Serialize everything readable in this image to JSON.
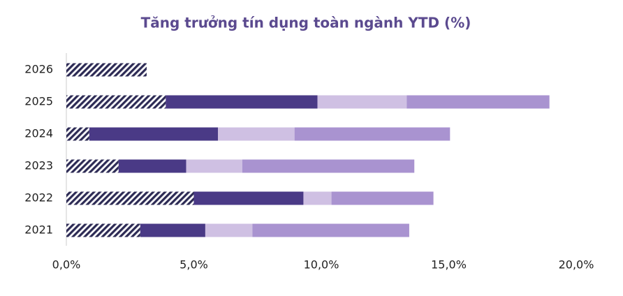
{
  "chart_data": {
    "type": "stacked-bar-horizontal",
    "title": "Tăng trưởng tín dụng toàn ngành YTD (%)",
    "categories": [
      "2026",
      "2025",
      "2024",
      "2023",
      "2022",
      "2021"
    ],
    "series": [
      {
        "color": "#2d2b55",
        "hatch": true,
        "values": [
          3.15,
          3.9,
          0.9,
          2.05,
          5.0,
          2.9
        ]
      },
      {
        "color": "#4a3a86",
        "values": [
          null,
          5.95,
          5.05,
          2.65,
          4.3,
          2.55
        ]
      },
      {
        "color": "#cfc0e3",
        "values": [
          null,
          3.5,
          3.0,
          2.2,
          1.1,
          1.85
        ]
      },
      {
        "color": "#a993d0",
        "values": [
          null,
          5.6,
          6.1,
          6.75,
          4.0,
          6.15
        ]
      }
    ],
    "xlim": [
      0,
      20
    ],
    "xticks": [
      {
        "value": 0,
        "label": "0,0%"
      },
      {
        "value": 5,
        "label": "5,0%"
      },
      {
        "value": 10,
        "label": "10,0%"
      },
      {
        "value": 15,
        "label": "15,0%"
      },
      {
        "value": 20,
        "label": "20,0%"
      }
    ]
  }
}
